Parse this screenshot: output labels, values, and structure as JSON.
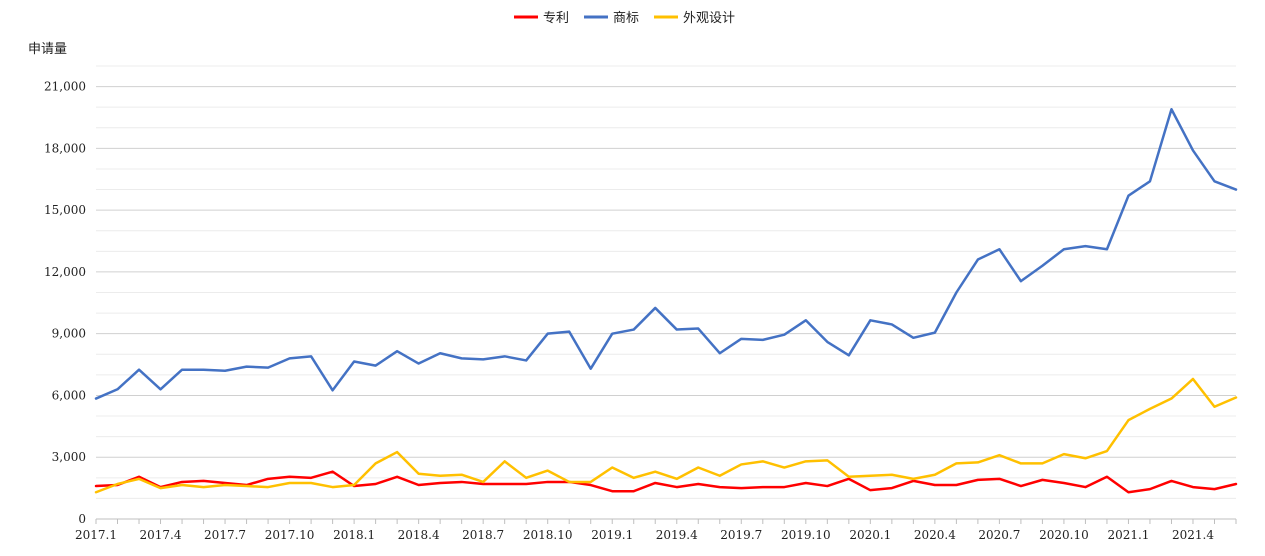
{
  "chart_data": {
    "type": "line",
    "ylabel": "申请量",
    "ylim": [
      0,
      22000
    ],
    "yticks": [
      0,
      3000,
      6000,
      9000,
      12000,
      15000,
      18000,
      21000
    ],
    "ytick_labels": [
      "0",
      "3,000",
      "6,000",
      "9,000",
      "12,000",
      "15,000",
      "18,000",
      "21,000"
    ],
    "minor_grid_step": 1000,
    "grid": true,
    "legend_position": "top-center",
    "x": [
      "2017.1",
      "2017.2",
      "2017.3",
      "2017.4",
      "2017.5",
      "2017.6",
      "2017.7",
      "2017.8",
      "2017.9",
      "2017.10",
      "2017.11",
      "2017.12",
      "2018.1",
      "2018.2",
      "2018.3",
      "2018.4",
      "2018.5",
      "2018.6",
      "2018.7",
      "2018.8",
      "2018.9",
      "2018.10",
      "2018.11",
      "2018.12",
      "2019.1",
      "2019.2",
      "2019.3",
      "2019.4",
      "2019.5",
      "2019.6",
      "2019.7",
      "2019.8",
      "2019.9",
      "2019.10",
      "2019.11",
      "2019.12",
      "2020.1",
      "2020.2",
      "2020.3",
      "2020.4",
      "2020.5",
      "2020.6",
      "2020.7",
      "2020.8",
      "2020.9",
      "2020.10",
      "2020.11",
      "2020.12",
      "2021.1",
      "2021.2",
      "2021.3",
      "2021.4",
      "2021.5",
      "2021.6"
    ],
    "xtick_labels": [
      "2017.1",
      "2017.4",
      "2017.7",
      "2017.10",
      "2018.1",
      "2018.4",
      "2018.7",
      "2018.10",
      "2019.1",
      "2019.4",
      "2019.7",
      "2019.10",
      "2020.1",
      "2020.4",
      "2020.7",
      "2020.10",
      "2021.1",
      "2021.4"
    ],
    "series": [
      {
        "name": "专利",
        "color": "#ff0000",
        "values": [
          1600,
          1650,
          2050,
          1550,
          1800,
          1850,
          1750,
          1650,
          1950,
          2050,
          2000,
          2300,
          1600,
          1700,
          2050,
          1650,
          1750,
          1800,
          1700,
          1700,
          1700,
          1800,
          1800,
          1650,
          1350,
          1350,
          1750,
          1550,
          1700,
          1550,
          1500,
          1550,
          1550,
          1750,
          1600,
          1950,
          1400,
          1500,
          1850,
          1650,
          1650,
          1900,
          1950,
          1600,
          1900,
          1750,
          1550,
          2050,
          1300,
          1450,
          1850,
          1550,
          1450,
          1700
        ]
      },
      {
        "name": "商标",
        "color": "#4472c4",
        "values": [
          5850,
          6300,
          7250,
          6300,
          7250,
          7250,
          7200,
          7400,
          7350,
          7800,
          7900,
          6250,
          7650,
          7450,
          8150,
          7550,
          8050,
          7800,
          7750,
          7900,
          7700,
          9000,
          9100,
          7300,
          9000,
          9200,
          10250,
          9200,
          9250,
          8050,
          8750,
          8700,
          8950,
          9650,
          8600,
          7950,
          9650,
          9450,
          8800,
          9050,
          11000,
          12600,
          13100,
          11550,
          12300,
          13100,
          13250,
          13100,
          15700,
          16400,
          19900,
          17900,
          16400,
          16000
        ]
      },
      {
        "name": "外观设计",
        "color": "#ffc000",
        "values": [
          1300,
          1700,
          1950,
          1500,
          1650,
          1550,
          1650,
          1600,
          1550,
          1750,
          1750,
          1550,
          1650,
          2700,
          3250,
          2200,
          2100,
          2150,
          1800,
          2800,
          2000,
          2350,
          1800,
          1800,
          2500,
          2000,
          2300,
          1950,
          2500,
          2100,
          2650,
          2800,
          2500,
          2800,
          2850,
          2050,
          2100,
          2150,
          1950,
          2150,
          2700,
          2750,
          3100,
          2700,
          2700,
          3150,
          2950,
          3300,
          4800,
          5350,
          5850,
          6800,
          5450,
          5900
        ]
      }
    ]
  }
}
